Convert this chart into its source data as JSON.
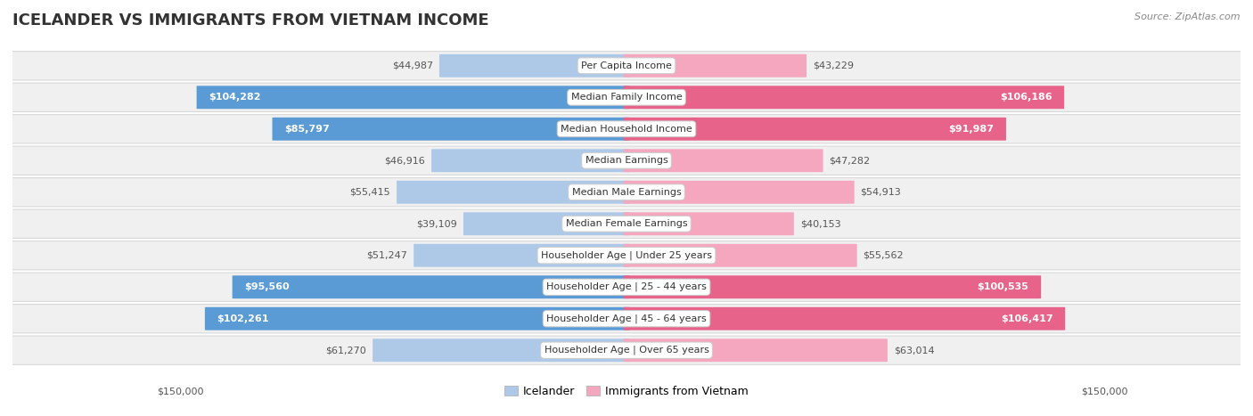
{
  "title": "ICELANDER VS IMMIGRANTS FROM VIETNAM INCOME",
  "source": "Source: ZipAtlas.com",
  "categories": [
    "Per Capita Income",
    "Median Family Income",
    "Median Household Income",
    "Median Earnings",
    "Median Male Earnings",
    "Median Female Earnings",
    "Householder Age | Under 25 years",
    "Householder Age | 25 - 44 years",
    "Householder Age | 45 - 64 years",
    "Householder Age | Over 65 years"
  ],
  "icelander_values": [
    44987,
    104282,
    85797,
    46916,
    55415,
    39109,
    51247,
    95560,
    102261,
    61270
  ],
  "vietnam_values": [
    43229,
    106186,
    91987,
    47282,
    54913,
    40153,
    55562,
    100535,
    106417,
    63014
  ],
  "max_value": 150000,
  "icelander_color_light": "#aec9e8",
  "icelander_color_dark": "#5b9bd5",
  "vietnam_color_light": "#f4a7bf",
  "vietnam_color_dark": "#e8638a",
  "row_bg_color": "#f0f0f0",
  "row_border_color": "#d8d8d8",
  "inside_label_threshold": 70000,
  "legend_icelander": "Icelander",
  "legend_vietnam": "Immigrants from Vietnam",
  "footer_left": "$150,000",
  "footer_right": "$150,000",
  "title_fontsize": 13,
  "source_fontsize": 8,
  "label_fontsize": 8,
  "cat_fontsize": 8
}
